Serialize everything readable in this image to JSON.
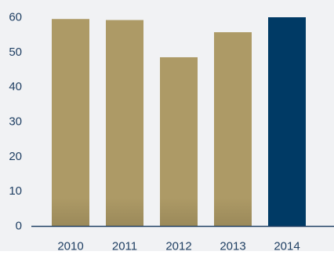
{
  "colors": {
    "background": "#f1f2f4",
    "bar_primary": "#ad9a66",
    "bar_shadow": "#8c7c50",
    "bar_highlight": "#003a65",
    "axis": "#1f3f63",
    "tick_text": "#1f3f63"
  },
  "chart_data": {
    "type": "bar",
    "title": "",
    "xlabel": "",
    "ylabel": "",
    "categories": [
      "2010",
      "2011",
      "2012",
      "2013",
      "2014"
    ],
    "values": [
      59.5,
      59.2,
      48.5,
      55.7,
      60
    ],
    "highlight_category": "2014",
    "ylim": [
      0,
      60
    ],
    "yticks": [
      "0",
      "10",
      "20",
      "30",
      "40",
      "50",
      "60"
    ],
    "grid": false,
    "legend": "none"
  }
}
